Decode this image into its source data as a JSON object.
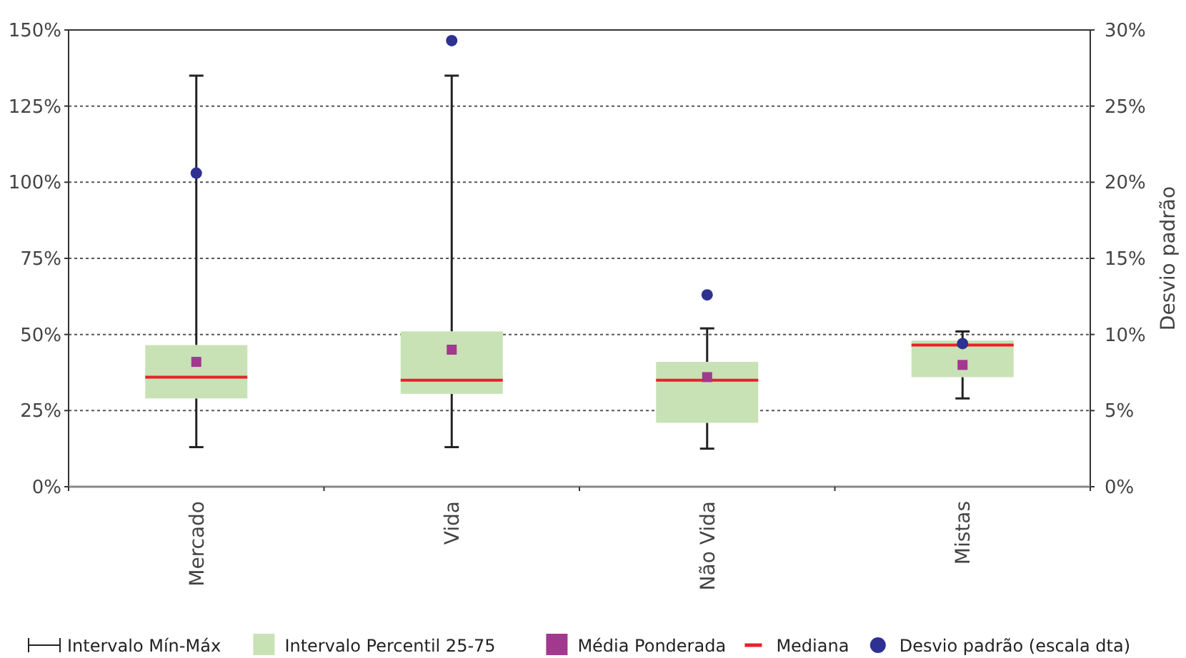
{
  "chart_data": {
    "type": "box",
    "categories": [
      "Mercado",
      "Vida",
      "Não Vida",
      "Mistas"
    ],
    "series": [
      {
        "type": "box",
        "color": "#c8e2b5",
        "boxes": [
          {
            "low": 13,
            "q1": 29,
            "median": 36,
            "q3": 46.5,
            "high": 135,
            "mean": 41
          },
          {
            "low": 13,
            "q1": 30.5,
            "median": 35,
            "q3": 51,
            "high": 135,
            "mean": 45
          },
          {
            "low": 12.5,
            "q1": 21,
            "median": 35,
            "q3": 41,
            "high": 52,
            "mean": 36
          },
          {
            "low": 29,
            "q1": 36,
            "median": 46.5,
            "q3": 48,
            "high": 51,
            "mean": 40
          }
        ]
      },
      {
        "type": "scatter",
        "name": "Desvio padrão (escala dta)",
        "axis": "y2",
        "color": "#2e3192",
        "marker": "circle",
        "x": [
          "Mercado",
          "Vida",
          "Não Vida",
          "Mistas"
        ],
        "values": [
          20.6,
          29.3,
          12.6,
          9.4
        ]
      }
    ],
    "ylim": [
      0,
      150
    ],
    "yticks": [
      {
        "value": 0,
        "label": "0%"
      },
      {
        "value": 25,
        "label": "25%"
      },
      {
        "value": 50,
        "label": "50%"
      },
      {
        "value": 75,
        "label": "75%"
      },
      {
        "value": 100,
        "label": "100%"
      },
      {
        "value": 125,
        "label": "125%"
      },
      {
        "value": 150,
        "label": "150%"
      }
    ],
    "y2lim": [
      0,
      30
    ],
    "y2ticks": [
      {
        "value": 0,
        "label": "0%"
      },
      {
        "value": 5,
        "label": "5%"
      },
      {
        "value": 10,
        "label": "10%"
      },
      {
        "value": 15,
        "label": "15%"
      },
      {
        "value": 20,
        "label": "20%"
      },
      {
        "value": 25,
        "label": "25%"
      },
      {
        "value": 30,
        "label": "30%"
      }
    ],
    "y2label": "Desvio padrão",
    "grid": "y",
    "legend": "bottom",
    "annotations": [
      "Intervalo Mín-Máx",
      "Intervalo Percentil 25-75",
      "Média Ponderada",
      "Mediana"
    ]
  }
}
